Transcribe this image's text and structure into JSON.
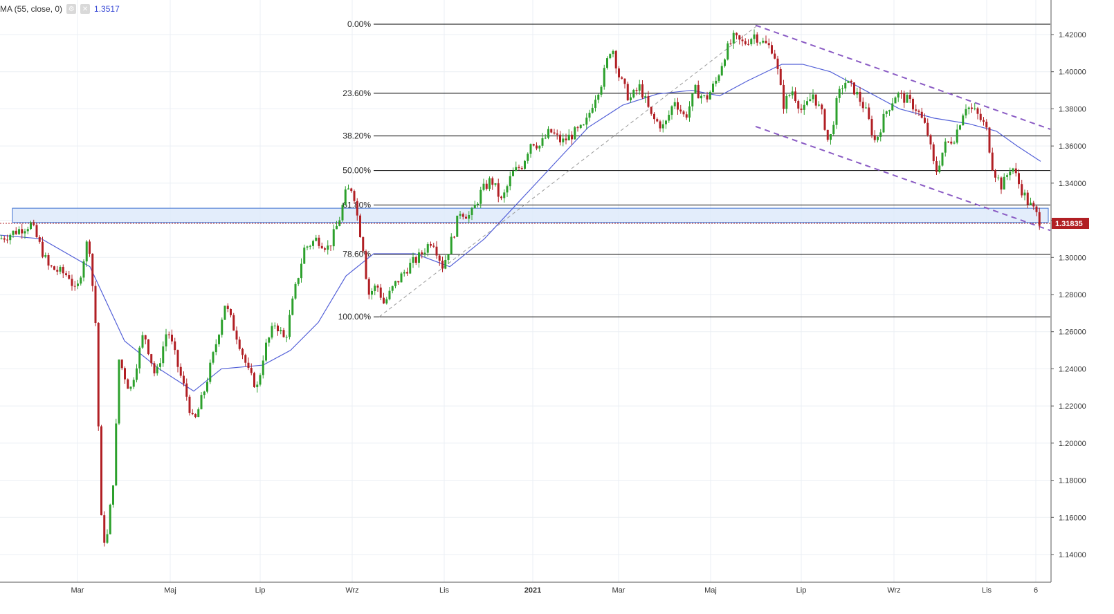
{
  "legend": {
    "indicator": "MA (55, close, 0)",
    "value": "1.3517",
    "settings_icon": "gear-icon",
    "close_icon": "close-icon"
  },
  "colors": {
    "up": "#2ca02c",
    "down": "#b11f24",
    "ma": "#5360d8",
    "channel": "#8a5bc4",
    "fib": "#000000",
    "zone_fill": "#dce8fa",
    "zone_stroke": "#3c6fd0",
    "price_tag": "#b11f24",
    "grid": "#ebeff4"
  },
  "price_tag": "1.31835",
  "chart_data": {
    "type": "candlestick",
    "x_labels": [
      "Mar",
      "Maj",
      "Lip",
      "Wrz",
      "Lis",
      "2021",
      "Mar",
      "Maj",
      "Lip",
      "Wrz",
      "Lis",
      "6"
    ],
    "y_ticks": [
      "1.42000",
      "1.40000",
      "1.38000",
      "1.36000",
      "1.34000",
      "1.32000",
      "1.30000",
      "1.28000",
      "1.26000",
      "1.24000",
      "1.22000",
      "1.20000",
      "1.18000",
      "1.16000",
      "1.14000"
    ],
    "ylim": [
      1.125,
      1.438
    ],
    "fib_levels": [
      {
        "label": "0.00%",
        "value": 1.4256
      },
      {
        "label": "23.60%",
        "value": 1.3884
      },
      {
        "label": "38.20%",
        "value": 1.3654
      },
      {
        "label": "50.00%",
        "value": 1.3468
      },
      {
        "label": "61.80%",
        "value": 1.3282
      },
      {
        "label": "78.60%",
        "value": 1.3017
      },
      {
        "label": "100.00%",
        "value": 1.268
      }
    ],
    "support_zone": [
      1.3188,
      1.3265
    ],
    "last_price": 1.31835,
    "ma_value": 1.3517,
    "series_path": [
      [
        0,
        1.31
      ],
      [
        45,
        1.318
      ],
      [
        70,
        1.295
      ],
      [
        100,
        1.29
      ],
      [
        110,
        1.28
      ],
      [
        128,
        1.312
      ],
      [
        138,
        1.265
      ],
      [
        146,
        1.16
      ],
      [
        153,
        1.143
      ],
      [
        165,
        1.185
      ],
      [
        172,
        1.245
      ],
      [
        188,
        1.228
      ],
      [
        208,
        1.26
      ],
      [
        225,
        1.235
      ],
      [
        242,
        1.262
      ],
      [
        258,
        1.24
      ],
      [
        270,
        1.225
      ],
      [
        280,
        1.21
      ],
      [
        295,
        1.228
      ],
      [
        310,
        1.25
      ],
      [
        325,
        1.275
      ],
      [
        345,
        1.255
      ],
      [
        360,
        1.237
      ],
      [
        372,
        1.23
      ],
      [
        382,
        1.25
      ],
      [
        398,
        1.265
      ],
      [
        412,
        1.255
      ],
      [
        425,
        1.28
      ],
      [
        440,
        1.305
      ],
      [
        458,
        1.31
      ],
      [
        475,
        1.305
      ],
      [
        490,
        1.32
      ],
      [
        500,
        1.335
      ],
      [
        510,
        1.338
      ],
      [
        518,
        1.318
      ],
      [
        525,
        1.305
      ],
      [
        532,
        1.28
      ],
      [
        545,
        1.285
      ],
      [
        555,
        1.275
      ],
      [
        570,
        1.285
      ],
      [
        590,
        1.295
      ],
      [
        605,
        1.3
      ],
      [
        625,
        1.31
      ],
      [
        640,
        1.295
      ],
      [
        655,
        1.312
      ],
      [
        665,
        1.325
      ],
      [
        680,
        1.322
      ],
      [
        695,
        1.335
      ],
      [
        710,
        1.342
      ],
      [
        725,
        1.33
      ],
      [
        740,
        1.345
      ],
      [
        755,
        1.35
      ],
      [
        768,
        1.363
      ],
      [
        780,
        1.36
      ],
      [
        795,
        1.368
      ],
      [
        812,
        1.362
      ],
      [
        830,
        1.367
      ],
      [
        845,
        1.37
      ],
      [
        858,
        1.385
      ],
      [
        870,
        1.395
      ],
      [
        884,
        1.415
      ],
      [
        895,
        1.397
      ],
      [
        910,
        1.385
      ],
      [
        925,
        1.392
      ],
      [
        942,
        1.375
      ],
      [
        960,
        1.37
      ],
      [
        975,
        1.385
      ],
      [
        990,
        1.375
      ],
      [
        1005,
        1.39
      ],
      [
        1020,
        1.385
      ],
      [
        1035,
        1.395
      ],
      [
        1048,
        1.41
      ],
      [
        1060,
        1.418
      ],
      [
        1075,
        1.415
      ],
      [
        1090,
        1.42
      ],
      [
        1105,
        1.415
      ],
      [
        1118,
        1.412
      ],
      [
        1125,
        1.398
      ],
      [
        1132,
        1.382
      ],
      [
        1145,
        1.39
      ],
      [
        1160,
        1.378
      ],
      [
        1175,
        1.388
      ],
      [
        1190,
        1.375
      ],
      [
        1198,
        1.36
      ],
      [
        1210,
        1.385
      ],
      [
        1220,
        1.395
      ],
      [
        1235,
        1.39
      ],
      [
        1250,
        1.38
      ],
      [
        1265,
        1.362
      ],
      [
        1280,
        1.378
      ],
      [
        1295,
        1.388
      ],
      [
        1310,
        1.385
      ],
      [
        1325,
        1.38
      ],
      [
        1340,
        1.368
      ],
      [
        1352,
        1.345
      ],
      [
        1365,
        1.36
      ],
      [
        1380,
        1.365
      ],
      [
        1395,
        1.382
      ],
      [
        1410,
        1.378
      ],
      [
        1425,
        1.37
      ],
      [
        1435,
        1.348
      ],
      [
        1448,
        1.338
      ],
      [
        1462,
        1.35
      ],
      [
        1472,
        1.34
      ],
      [
        1485,
        1.33
      ],
      [
        1495,
        1.325
      ],
      [
        1505,
        1.318
      ]
    ],
    "ma_path": [
      [
        0,
        1.312
      ],
      [
        60,
        1.31
      ],
      [
        130,
        1.295
      ],
      [
        180,
        1.255
      ],
      [
        230,
        1.24
      ],
      [
        280,
        1.228
      ],
      [
        320,
        1.24
      ],
      [
        380,
        1.242
      ],
      [
        420,
        1.25
      ],
      [
        460,
        1.265
      ],
      [
        500,
        1.29
      ],
      [
        540,
        1.302
      ],
      [
        600,
        1.302
      ],
      [
        650,
        1.295
      ],
      [
        700,
        1.31
      ],
      [
        750,
        1.33
      ],
      [
        800,
        1.35
      ],
      [
        850,
        1.37
      ],
      [
        900,
        1.382
      ],
      [
        950,
        1.388
      ],
      [
        1000,
        1.39
      ],
      [
        1040,
        1.387
      ],
      [
        1080,
        1.395
      ],
      [
        1130,
        1.404
      ],
      [
        1160,
        1.404
      ],
      [
        1200,
        1.4
      ],
      [
        1250,
        1.39
      ],
      [
        1300,
        1.38
      ],
      [
        1350,
        1.375
      ],
      [
        1400,
        1.372
      ],
      [
        1440,
        1.368
      ],
      [
        1470,
        1.36
      ],
      [
        1504,
        1.3517
      ]
    ]
  }
}
